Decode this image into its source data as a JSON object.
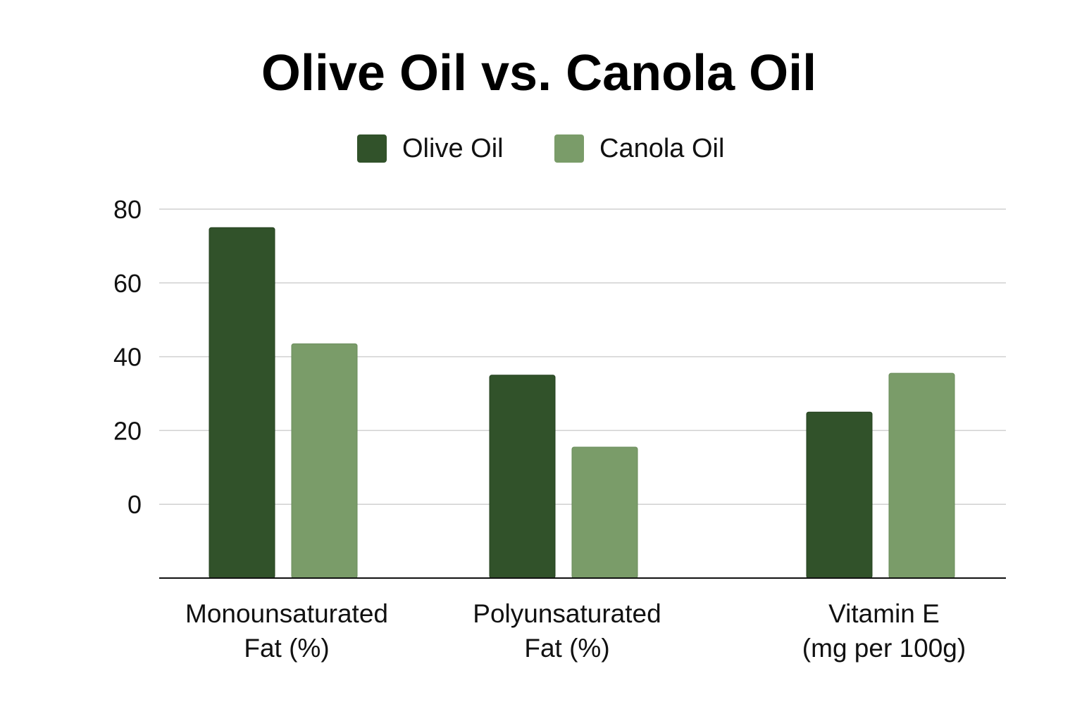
{
  "chart_data": {
    "type": "bar",
    "title": "Olive Oil vs. Canola Oil",
    "categories": [
      [
        "Monounsaturated",
        "Fat (%)"
      ],
      [
        "Polyunsaturated",
        "Fat (%)"
      ],
      [
        "Vitamin E",
        "(mg per 100g)"
      ]
    ],
    "series": [
      {
        "name": "Olive Oil",
        "color": "#31522a",
        "values": [
          75,
          35,
          25
        ]
      },
      {
        "name": "Canola Oil",
        "color": "#7a9c69",
        "values": [
          43.5,
          15.5,
          35.5
        ]
      }
    ],
    "yticks": [
      "0",
      "20",
      "40",
      "60",
      "80"
    ],
    "ylim": [
      -20,
      80
    ],
    "grid": true,
    "legend_position": "top-center"
  }
}
